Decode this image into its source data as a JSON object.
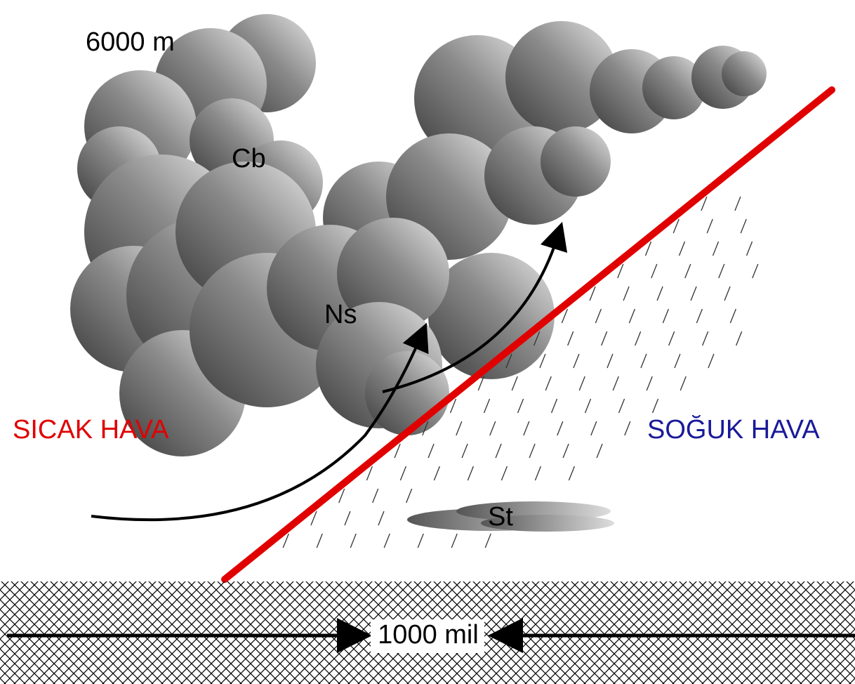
{
  "labels": {
    "altitude": "6000 m",
    "cumulonimbus": "Cb",
    "nimbostratus": "Ns",
    "warm_air": "SICAK HAVA",
    "cold_air": "SOĞUK HAVA",
    "stratus": "St",
    "distance": "1000 mil"
  }
}
